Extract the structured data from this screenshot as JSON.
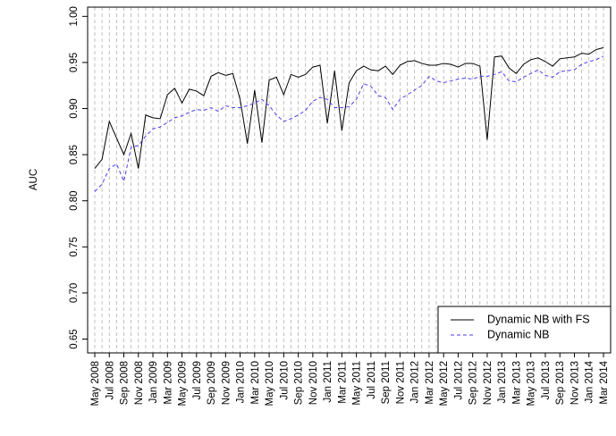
{
  "chart_data": {
    "type": "line",
    "y_label": "AUC",
    "categories": [
      "May 2008",
      null,
      "Jul 2008",
      null,
      "Sep 2008",
      null,
      "Nov 2008",
      null,
      "Jan 2009",
      null,
      "Mar 2009",
      null,
      "May 2009",
      null,
      "Jul 2009",
      null,
      "Sep 2009",
      null,
      "Nov 2009",
      null,
      "Jan 2010",
      null,
      "Mar 2010",
      null,
      "May 2010",
      null,
      "Jul 2010",
      null,
      "Sep 2010",
      null,
      "Nov 2010",
      null,
      "Jan 2011",
      null,
      "Mar 2011",
      null,
      "May 2011",
      null,
      "Jul 2011",
      null,
      "Sep 2011",
      null,
      "Nov 2011",
      null,
      "Jan 2012",
      null,
      "Mar 2012",
      null,
      "May 2012",
      null,
      "Jul 2012",
      null,
      "Sep 2012",
      null,
      "Nov 2012",
      null,
      "Jan 2013",
      null,
      "Mar 2013",
      null,
      "May 2013",
      null,
      "Jul 2013",
      null,
      "Sep 2013",
      null,
      "Nov 2013",
      null,
      "Jan 2014",
      null,
      "Mar 2014"
    ],
    "series": [
      {
        "name": "Dynamic NB with FS",
        "color": "#000000",
        "line_style": "solid",
        "values": [
          0.835,
          0.845,
          0.886,
          0.868,
          0.85,
          0.873,
          0.835,
          0.893,
          0.89,
          0.889,
          0.915,
          0.922,
          0.906,
          0.921,
          0.919,
          0.914,
          0.935,
          0.939,
          0.936,
          0.938,
          0.91,
          0.862,
          0.92,
          0.863,
          0.931,
          0.934,
          0.915,
          0.937,
          0.934,
          0.937,
          0.945,
          0.947,
          0.884,
          0.941,
          0.876,
          0.928,
          0.941,
          0.946,
          0.942,
          0.941,
          0.946,
          0.937,
          0.947,
          0.951,
          0.952,
          0.949,
          0.947,
          0.947,
          0.949,
          0.948,
          0.945,
          0.949,
          0.949,
          0.946,
          0.866,
          0.956,
          0.957,
          0.944,
          0.938,
          0.948,
          0.953,
          0.955,
          0.951,
          0.946,
          0.954,
          0.955,
          0.956,
          0.96,
          0.959,
          0.964,
          0.966
        ]
      },
      {
        "name": "Dynamic NB",
        "color": "#4b3cf0",
        "line_style": "dashed",
        "values": [
          0.81,
          0.818,
          0.835,
          0.84,
          0.821,
          0.858,
          0.86,
          0.87,
          0.878,
          0.88,
          0.885,
          0.89,
          0.892,
          0.896,
          0.899,
          0.898,
          0.901,
          0.897,
          0.903,
          0.901,
          0.901,
          0.903,
          0.906,
          0.91,
          0.903,
          0.893,
          0.886,
          0.889,
          0.893,
          0.898,
          0.908,
          0.912,
          0.91,
          0.901,
          0.901,
          0.902,
          0.91,
          0.927,
          0.924,
          0.914,
          0.912,
          0.899,
          0.91,
          0.915,
          0.92,
          0.925,
          0.935,
          0.93,
          0.928,
          0.93,
          0.932,
          0.933,
          0.932,
          0.935,
          0.935,
          0.937,
          0.94,
          0.93,
          0.929,
          0.934,
          0.938,
          0.942,
          0.936,
          0.934,
          0.94,
          0.941,
          0.942,
          0.948,
          0.951,
          0.953,
          0.957
        ]
      }
    ],
    "ylim": [
      0.635,
      1.01
    ],
    "yticks": [
      0.65,
      {
        "value": 0.7,
        "label": "0.70"
      },
      0.75,
      {
        "value": 0.8,
        "label": "0.80"
      },
      0.85,
      {
        "value": 0.9,
        "label": "0.90"
      },
      0.95,
      {
        "value": 1.0,
        "label": "1.00"
      }
    ],
    "vertical_grid": true,
    "legend_position": "bottom-right"
  }
}
